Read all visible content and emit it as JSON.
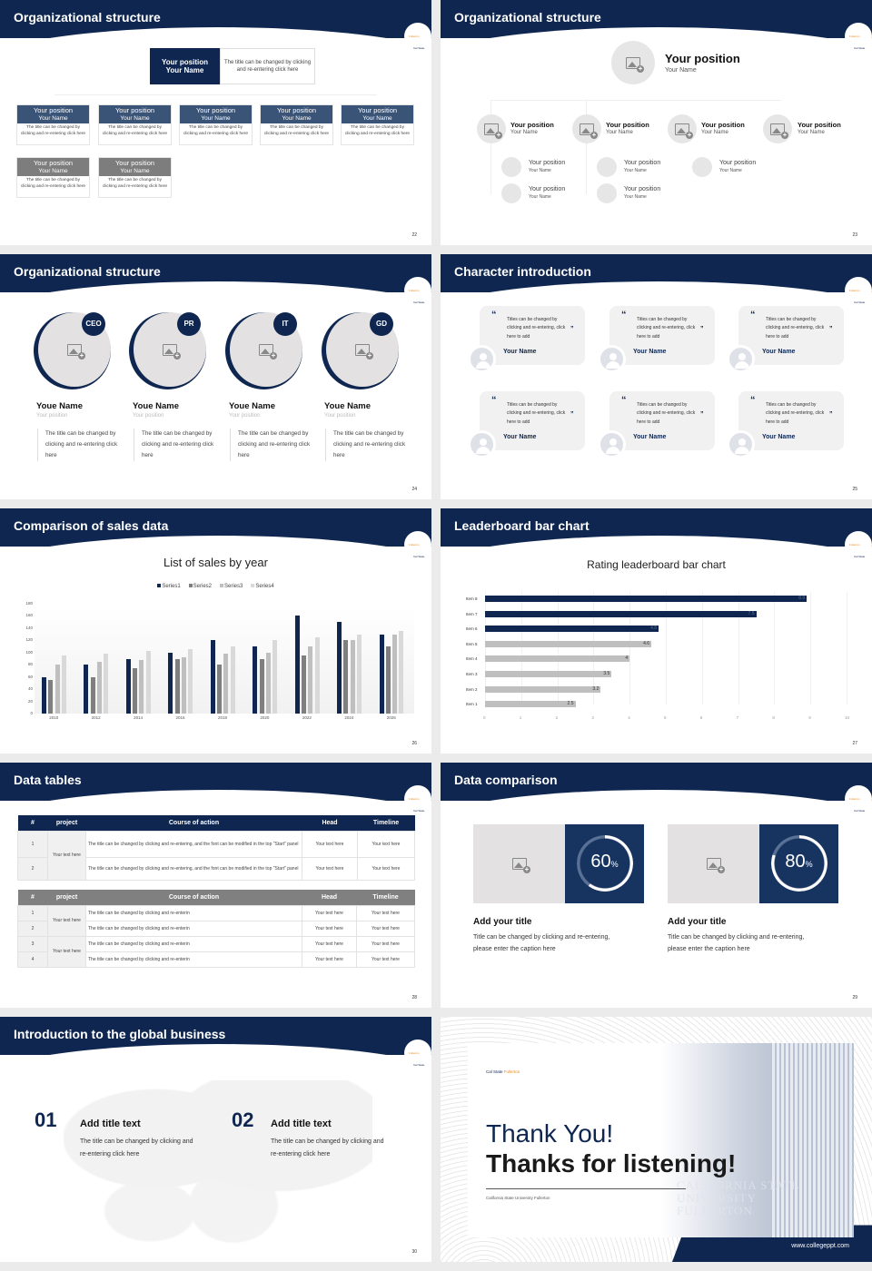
{
  "common": {
    "logo_left": "Cal State",
    "logo_right": "Fullerton"
  },
  "slides": {
    "s22": {
      "title": "Organizational structure",
      "page": "22",
      "top": {
        "position": "Your position",
        "name": "Your Name",
        "desc": "The title can be changed by clicking and re-entering click here"
      },
      "cards": [
        {
          "position": "Your position",
          "name": "Your Name",
          "desc": "The title can be changed by clicking and re-entering click here"
        },
        {
          "position": "Your position",
          "name": "Your Name",
          "desc": "The title can be changed by clicking and re-entering click here"
        },
        {
          "position": "Your position",
          "name": "Your Name",
          "desc": "The title can be changed by clicking and re-entering click here"
        },
        {
          "position": "Your position",
          "name": "Your Name",
          "desc": "The title can be changed by clicking and re-entering click here"
        },
        {
          "position": "Your position",
          "name": "Your Name",
          "desc": "The title can be changed by clicking and re-entering click here"
        },
        {
          "position": "Your position",
          "name": "Your Name",
          "desc": "The title can be changed by clicking and re-entering click here"
        },
        {
          "position": "Your position",
          "name": "Your Name",
          "desc": "The title can be changed by clicking and re-entering click here"
        }
      ]
    },
    "s23": {
      "title": "Organizational structure",
      "page": "23",
      "top": {
        "position": "Your position",
        "name": "Your Name"
      },
      "level1": [
        {
          "position": "Your position",
          "name": "Your Name"
        },
        {
          "position": "Your position",
          "name": "Your Name"
        },
        {
          "position": "Your position",
          "name": "Your Name"
        },
        {
          "position": "Your position",
          "name": "Your Name"
        }
      ],
      "level2": [
        {
          "position": "Your position",
          "name": "Your Name"
        },
        {
          "position": "Your position",
          "name": "Your Name"
        },
        {
          "position": "Your position",
          "name": "Your Name"
        },
        {
          "position": "Your position",
          "name": "Your Name"
        },
        {
          "position": "Your position",
          "name": "Your Name"
        }
      ]
    },
    "s24": {
      "title": "Organizational structure",
      "page": "24",
      "members": [
        {
          "badge": "CEO",
          "name": "Youe Name",
          "position": "Your position",
          "desc": "The title can be changed by clicking and re-entering click here"
        },
        {
          "badge": "PR",
          "name": "Youe Name",
          "position": "Your position",
          "desc": "The title can be changed by clicking and re-entering click here"
        },
        {
          "badge": "IT",
          "name": "Youe Name",
          "position": "Your position",
          "desc": "The title can be changed by clicking and re-entering click here"
        },
        {
          "badge": "GD",
          "name": "Youe Name",
          "position": "Your position",
          "desc": "The title can be changed by clicking and re-entering click here"
        }
      ]
    },
    "s25": {
      "title": "Character introduction",
      "page": "25",
      "quotes": [
        {
          "text": "Titles can be changed by clicking and re-entering, click here to add",
          "name": "Your Name"
        },
        {
          "text": "Titles can be changed by clicking and re-entering, click here to add",
          "name": "Your Name"
        },
        {
          "text": "Titles can be changed by clicking and re-entering, click here to add",
          "name": "Your Name"
        },
        {
          "text": "Titles can be changed by clicking and re-entering, click here to add",
          "name": "Your Name"
        },
        {
          "text": "Titles can be changed by clicking and re-entering, click here to add",
          "name": "Your Name"
        },
        {
          "text": "Titles can be changed by clicking and re-entering, click here to add",
          "name": "Your Name"
        }
      ]
    },
    "s26": {
      "title": "Comparison of sales data",
      "page": "26"
    },
    "s27": {
      "title": "Leaderboard bar chart",
      "page": "27"
    },
    "s28": {
      "title": "Data tables",
      "page": "28",
      "headers": [
        "#",
        "project",
        "Course of action",
        "Head",
        "Timeline"
      ],
      "table1": [
        {
          "num": "1",
          "project": "Your text here",
          "action": "The title can be changed by clicking and re-entering, and the font can be modified in the top \"Start\" panel",
          "head": "Your text here",
          "timeline": "Your text here"
        },
        {
          "num": "2",
          "project": "",
          "action": "The title can be changed by clicking and re-entering, and the font can be modified in the top \"Start\" panel",
          "head": "Your text here",
          "timeline": "Your text here"
        }
      ],
      "table2": [
        {
          "num": "1",
          "project": "Your text here",
          "action": "The title can be changed by clicking and re-enterin",
          "head": "Your text here",
          "timeline": "Your text here"
        },
        {
          "num": "2",
          "project": "",
          "action": "The title can be changed by clicking and re-enterin",
          "head": "Your text here",
          "timeline": "Your text here"
        },
        {
          "num": "3",
          "project": "Your text here",
          "action": "The title can be changed by clicking and re-enterin",
          "head": "Your text here",
          "timeline": "Your text here"
        },
        {
          "num": "4",
          "project": "",
          "action": "The title can be changed by clicking and re-enterin",
          "head": "Your text here",
          "timeline": "Your text here"
        }
      ]
    },
    "s29": {
      "title": "Data comparison",
      "page": "29",
      "items": [
        {
          "value": "60",
          "unit": "%",
          "title": "Add your title",
          "desc": "Title can be changed by clicking and re-entering, please enter the caption here"
        },
        {
          "value": "80",
          "unit": "%",
          "title": "Add your title",
          "desc": "Title can be changed by clicking and re-entering, please enter the caption here"
        }
      ]
    },
    "s30": {
      "title": "Introduction to the global business",
      "page": "30",
      "items": [
        {
          "num": "01",
          "title": "Add title text",
          "desc": "The title can be changed by clicking and re-entering click here"
        },
        {
          "num": "02",
          "title": "Add title text",
          "desc": "The title can be changed by clicking and re-entering click here"
        }
      ]
    },
    "s31": {
      "logo_left": "Cal State",
      "logo_right": "Fullerton",
      "line1": "Thank You!",
      "line2": "Thanks for listening!",
      "subtitle": "California State University Fullerton",
      "url": "www.collegeppt.com",
      "sign": "CALIFORNIA STATE UNIVERSITY FULLERTON"
    }
  },
  "chart_data": [
    {
      "type": "bar",
      "title": "List of sales by year",
      "categories": [
        "2010",
        "2012",
        "2014",
        "2016",
        "2018",
        "2020",
        "2022",
        "2024",
        "2026"
      ],
      "series": [
        {
          "name": "Series1",
          "color": "#0e2650",
          "values": [
            60,
            80,
            90,
            100,
            120,
            110,
            160,
            150,
            130
          ]
        },
        {
          "name": "Series2",
          "color": "#7f7f7f",
          "values": [
            55,
            60,
            75,
            90,
            80,
            90,
            95,
            120,
            110
          ]
        },
        {
          "name": "Series3",
          "color": "#bfbfbf",
          "values": [
            80,
            85,
            88,
            92,
            98,
            100,
            110,
            120,
            130
          ]
        },
        {
          "name": "Series4",
          "color": "#d9d9d9",
          "values": [
            95,
            98,
            102,
            105,
            110,
            120,
            125,
            130,
            135
          ]
        }
      ],
      "yticks": [
        "0",
        "20",
        "40",
        "60",
        "80",
        "100",
        "120",
        "140",
        "160",
        "180"
      ],
      "ylim": [
        0,
        180
      ],
      "legend_position": "top",
      "grid": false
    },
    {
      "type": "bar",
      "orientation": "horizontal",
      "title": "Rating leaderboard bar chart",
      "categories": [
        "Item 8",
        "Item 7",
        "Item 6",
        "Item 5",
        "Item 4",
        "Item 3",
        "Item 2",
        "Item 1"
      ],
      "values": [
        8.9,
        7.5,
        4.8,
        4.6,
        4,
        3.5,
        3.2,
        2.5
      ],
      "labels": [
        "8.9",
        "7.5",
        "4.8",
        "4.6",
        "4",
        "3.5",
        "3.2",
        "2.5"
      ],
      "colors": [
        "#0e2650",
        "#0e2650",
        "#0e2650",
        "#bfbfbf",
        "#bfbfbf",
        "#bfbfbf",
        "#bfbfbf",
        "#bfbfbf"
      ],
      "xticks": [
        "0",
        "1",
        "2",
        "3",
        "4",
        "5",
        "6",
        "7",
        "8",
        "9",
        "10"
      ],
      "xlim": [
        0,
        10
      ],
      "grid": true
    }
  ]
}
